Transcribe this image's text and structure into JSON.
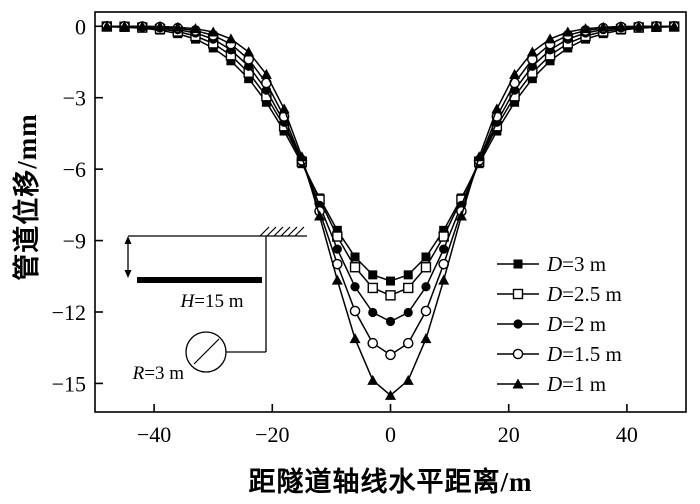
{
  "chart_data": {
    "type": "line",
    "title": "",
    "xlabel": "距隧道轴线水平距离/m",
    "ylabel": "管道位移/mm",
    "xlim": [
      -50,
      50
    ],
    "ylim": [
      -16.2,
      0.6
    ],
    "xticks": [
      -40,
      -20,
      0,
      20,
      40
    ],
    "yticks": [
      0,
      -3,
      -6,
      -9,
      -12,
      -15
    ],
    "grid": false,
    "color": "#000000",
    "legend_position": "right-center",
    "x": [
      -48,
      -45,
      -42,
      -39,
      -36,
      -33,
      -30,
      -27,
      -24,
      -21,
      -18,
      -15,
      -12,
      -9,
      -6,
      -3,
      0,
      3,
      6,
      9,
      12,
      15,
      18,
      21,
      24,
      27,
      30,
      33,
      36,
      39,
      42,
      45,
      48
    ],
    "series": [
      {
        "name": "D=3 m",
        "marker": "square-filled",
        "values": [
          -0.02,
          -0.04,
          -0.08,
          -0.16,
          -0.31,
          -0.54,
          -0.91,
          -1.45,
          -2.2,
          -3.19,
          -4.4,
          -5.77,
          -7.21,
          -8.57,
          -9.69,
          -10.44,
          -10.7,
          -10.44,
          -9.69,
          -8.57,
          -7.21,
          -5.77,
          -4.4,
          -3.19,
          -2.2,
          -1.45,
          -0.91,
          -0.54,
          -0.31,
          -0.16,
          -0.08,
          -0.04,
          -0.02
        ]
      },
      {
        "name": "D=2.5 m",
        "marker": "square-open",
        "values": [
          -0.01,
          -0.02,
          -0.05,
          -0.11,
          -0.22,
          -0.41,
          -0.72,
          -1.22,
          -1.95,
          -2.94,
          -4.2,
          -5.69,
          -7.28,
          -8.83,
          -10.12,
          -10.99,
          -11.3,
          -10.99,
          -10.12,
          -8.83,
          -7.28,
          -5.69,
          -4.2,
          -2.94,
          -1.95,
          -1.22,
          -0.72,
          -0.41,
          -0.22,
          -0.11,
          -0.05,
          -0.02,
          -0.01
        ]
      },
      {
        "name": "D=2 m",
        "marker": "circle-filled",
        "values": [
          0.0,
          -0.01,
          -0.03,
          -0.06,
          -0.14,
          -0.28,
          -0.54,
          -0.99,
          -1.68,
          -2.68,
          -4.03,
          -5.68,
          -7.52,
          -9.36,
          -10.94,
          -12.02,
          -12.4,
          -12.02,
          -10.94,
          -9.36,
          -7.52,
          -5.68,
          -4.03,
          -2.68,
          -1.68,
          -0.99,
          -0.54,
          -0.28,
          -0.14,
          -0.06,
          -0.03,
          -0.01,
          0.0
        ]
      },
      {
        "name": "D=1.5 m",
        "marker": "circle-open",
        "values": [
          0.0,
          0.0,
          -0.01,
          -0.03,
          -0.08,
          -0.18,
          -0.38,
          -0.75,
          -1.39,
          -2.38,
          -3.79,
          -5.63,
          -7.77,
          -9.99,
          -11.96,
          -13.31,
          -13.8,
          -13.31,
          -11.96,
          -9.99,
          -7.77,
          -5.63,
          -3.79,
          -2.38,
          -1.39,
          -0.75,
          -0.38,
          -0.18,
          -0.08,
          -0.03,
          -0.01,
          0.0,
          0.0
        ]
      },
      {
        "name": "D=1 m",
        "marker": "triangle-filled",
        "values": [
          0.0,
          0.0,
          0.0,
          -0.01,
          -0.04,
          -0.1,
          -0.24,
          -0.53,
          -1.08,
          -2.02,
          -3.47,
          -5.48,
          -7.97,
          -10.66,
          -13.12,
          -14.87,
          -15.5,
          -14.87,
          -13.12,
          -10.66,
          -7.97,
          -5.48,
          -3.47,
          -2.02,
          -1.08,
          -0.53,
          -0.24,
          -0.1,
          -0.04,
          -0.01,
          0.0,
          0.0,
          0.0
        ]
      }
    ]
  },
  "inset": {
    "h_label": "H=15 m",
    "r_label": "R=3 m"
  }
}
